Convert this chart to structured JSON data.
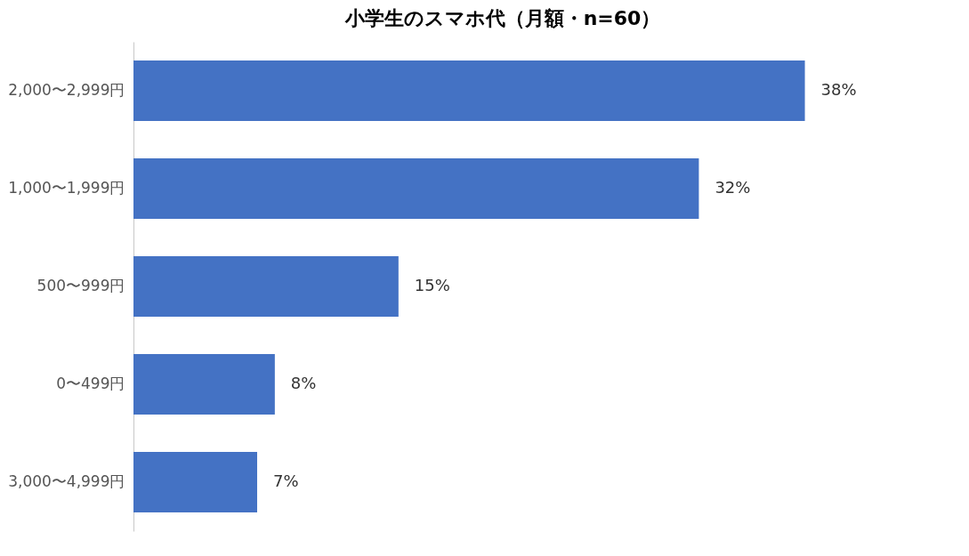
{
  "chart_data": {
    "type": "bar",
    "orientation": "horizontal",
    "title": "小学生のスマホ代（月額・n=60）",
    "categories": [
      "2,000〜2,999円",
      "1,000〜1,999円",
      "500〜999円",
      "0〜499円",
      "3,000〜4,999円"
    ],
    "values": [
      38,
      32,
      15,
      8,
      7
    ],
    "value_labels": [
      "38%",
      "32%",
      "15%",
      "8%",
      "7%"
    ],
    "color": "#4472c4",
    "grid": false
  }
}
